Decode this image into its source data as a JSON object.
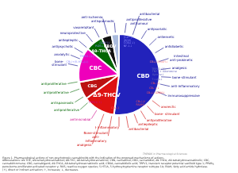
{
  "chart_data": {
    "type": "pie",
    "categories": [
      "CBD",
      "Δ9-THCV",
      "CBG",
      "CBC",
      "Δ9-THCA",
      "CBDV",
      null
    ],
    "values": [
      52,
      13,
      7,
      14,
      7,
      4,
      3
    ],
    "colors": [
      "#2222bb",
      "#dd1111",
      "#bb1111",
      "#ee00bb",
      "#006600",
      "#111111",
      "#aabbdd"
    ],
    "annotations": [
      {
        "angle": 82,
        "text": "antiproliferative\nantitumour",
        "color": "#000088"
      },
      {
        "angle": 71,
        "text": "antibacterial",
        "color": "#000088"
      },
      {
        "angle": 58,
        "text": "antipsoriatic",
        "color": "#000088"
      },
      {
        "angle": 44,
        "text": "antiemetic",
        "color": "#000088"
      },
      {
        "angle": 31,
        "text": "antidiabetic",
        "color": "#000088"
      },
      {
        "angle": 18,
        "text": "intestinal\nanti-prokinetic",
        "color": "#000088"
      },
      {
        "angle": 7,
        "text": "analgesic",
        "color": "#000088"
      },
      {
        "angle": 357,
        "text": "bone-stimulant",
        "color": "#000088"
      },
      {
        "angle": 347,
        "text": "anti-inflammatory",
        "color": "#000088"
      },
      {
        "angle": 336,
        "text": "immunosuppressive",
        "color": "#000088"
      },
      {
        "angle": 95,
        "text": "antispasmodic",
        "color": "#000088"
      },
      {
        "angle": 106,
        "text": "anti-ischemia",
        "color": "#000088"
      },
      {
        "angle": 118,
        "text": "vasorelaXant",
        "color": "#000088"
      },
      {
        "angle": 129,
        "text": "neuroprotective",
        "color": "#000088"
      },
      {
        "angle": 140,
        "text": "antiepileptic",
        "color": "#000088"
      },
      {
        "angle": 149,
        "text": "antipsychotic",
        "color": "#000088"
      },
      {
        "angle": 158,
        "text": "anxiolytic",
        "color": "#000088"
      },
      {
        "angle": 168,
        "text": "bone-\nstimulant",
        "color": "#000088"
      },
      {
        "angle": 322,
        "text": "anorectic",
        "color": "#cc0000"
      },
      {
        "angle": 312,
        "text": "bone- stimulant",
        "color": "#cc0000"
      },
      {
        "angle": 301,
        "text": "antiproliferative",
        "color": "#cc0000"
      },
      {
        "angle": 291,
        "text": "antiepileptic",
        "color": "#cc0000"
      },
      {
        "angle": 280,
        "text": "antibacterial",
        "color": "#cc0000"
      },
      {
        "angle": 270,
        "text": "† inflammatory",
        "color": "#cc0000"
      },
      {
        "angle": 260,
        "text": "Bone-stimulant\nanti-\ninflammatory",
        "color": "#cc0000"
      },
      {
        "angle": 249,
        "text": "analgesic",
        "color": "#cc0000"
      },
      {
        "angle": 238,
        "text": "antimicrobial",
        "color": "#cc0088"
      },
      {
        "angle": 222,
        "text": "antiproliferative",
        "color": "#006600"
      },
      {
        "angle": 212,
        "text": "antispasmodic",
        "color": "#006600"
      },
      {
        "angle": 200,
        "text": "antiproliferative",
        "color": "#006600"
      },
      {
        "angle": 190,
        "text": "antiproliferative",
        "color": "#006600"
      }
    ],
    "inner_annotations": [
      {
        "angle": 82,
        "text": "[Ca²⁺]↓\n|ROS|\nCOX₂(↓)\nNF-1↓",
        "color": "#8888ff"
      },
      {
        "angle": 106,
        "text": "[Ca²⁺]↓",
        "color": "#8888ff"
      },
      {
        "angle": 118,
        "text": "ROS↓",
        "color": "#8888ff"
      },
      {
        "angle": 140,
        "text": "TRPV1 (↓)",
        "color": "#8888ff"
      },
      {
        "angle": 158,
        "text": "CB₁(+)5-HT₁ₐ(↓)",
        "color": "#8888ff"
      },
      {
        "angle": 22,
        "text": "CB₁(-)/FAAH↓",
        "color": "#ff8888"
      },
      {
        "angle": 10,
        "text": "TRPV1 (↑)",
        "color": "#6666bb"
      },
      {
        "angle": 2,
        "text": "TNF↓↓ Adenosine\nUptake↓",
        "color": "#6666bb"
      },
      {
        "angle": 354,
        "text": "T-cells↓",
        "color": "#6666bb"
      },
      {
        "angle": 345,
        "text": "CB₁ (-)",
        "color": "#ff5555"
      },
      {
        "angle": 336,
        "text": "CB₁ ↓↓",
        "color": "#ff5555"
      },
      {
        "angle": 326,
        "text": "CB₁(-) GABA↓",
        "color": "#ff5555"
      },
      {
        "angle": 301,
        "text": "CB₁(-)/\nFAAH↓",
        "color": "#ff5555"
      },
      {
        "angle": 270,
        "text": "CB₁(-)",
        "color": "#ff5555"
      },
      {
        "angle": 238,
        "text": "TRPA1(↑)",
        "color": "#cc0088"
      }
    ],
    "caption": "Figure 1. Pharmacological actions of non-psychotropic cannabinoids with the indication of the proposed mechanisms of actions.\nAbbreviations: Δ9-THC, Δ9-tetrahydrocannabinol; Δ8-THC, Δ8-tetrahydrocannabinol; CBN, cannabinol; CBD, cannabidiol; Δ9-THCA, Δ9-tetrahydrocannabinolic; CBC,\ncannabichromene; CBG, cannabigerol; Δ9-THCA, Δ9-tetrahydrocannabinolic acid; CBDA, cannabidiolic acid; TRPV1, transient receptor potential vanilloid type 1; PPARγ,\nperoxisome proliferator-activated receptor γ; ROS, reactive oxygen species; 5-HT1A, 5-hydroxytryptamine receptor subtype 1A; FAAH, fatty acid amide hydrolase.\n(↑), direct or indirect activation; ↑, increases; ↓, decreases.",
    "source": "TRENDS in Pharmacological Sciences"
  }
}
